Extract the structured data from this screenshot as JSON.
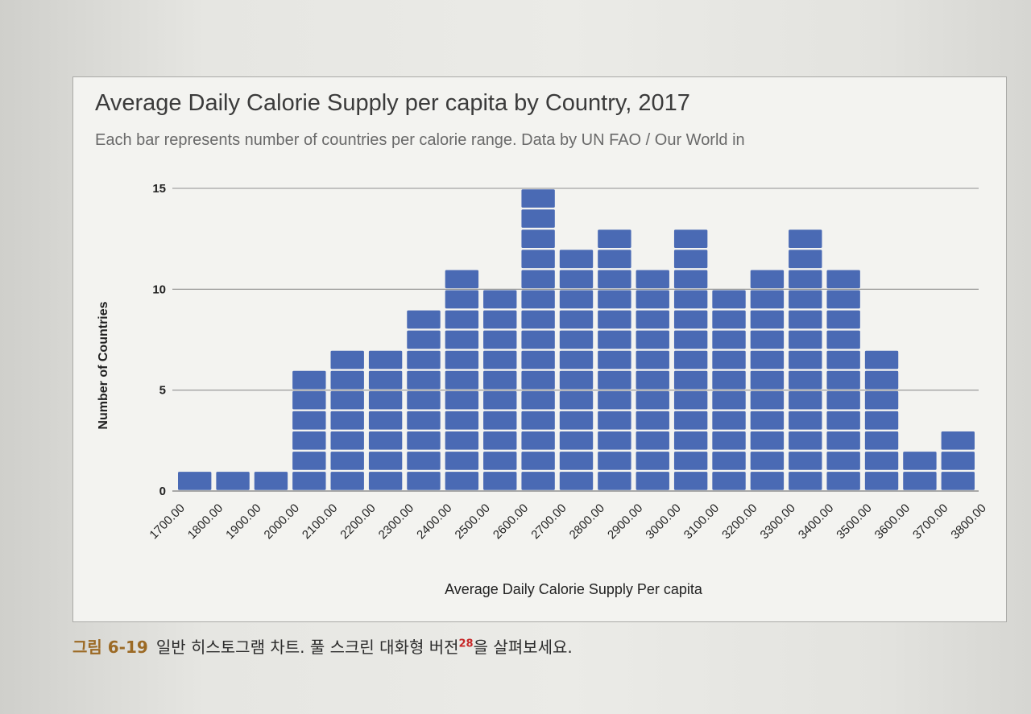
{
  "colors": {
    "bar": "#4a6ab4",
    "bar_divider": "#ffffff",
    "gridline": "#8f8f8f",
    "axis_text": "#222222",
    "caption_label": "#9c6a25",
    "footnote": "#c62828"
  },
  "chart_data": {
    "type": "bar",
    "title": "Average Daily Calorie Supply per capita by Country, 2017",
    "subtitle": "Each bar represents number of countries per calorie range. Data by UN FAO / Our World in",
    "xlabel": "Average Daily Calorie Supply Per capita",
    "ylabel": "Number of Countries",
    "ylim": [
      0,
      15
    ],
    "yticks": [
      "0",
      "5",
      "10",
      "15"
    ],
    "grid": true,
    "legend": "none",
    "x_tick_labels": [
      "1700.00",
      "1800.00",
      "1900.00",
      "2000.00",
      "2100.00",
      "2200.00",
      "2300.00",
      "2400.00",
      "2500.00",
      "2600.00",
      "2700.00",
      "2800.00",
      "2900.00",
      "3000.00",
      "3100.00",
      "3200.00",
      "3300.00",
      "3400.00",
      "3500.00",
      "3600.00",
      "3700.00",
      "3800.00"
    ],
    "values": [
      1,
      1,
      1,
      6,
      7,
      7,
      9,
      11,
      10,
      15,
      12,
      13,
      11,
      13,
      10,
      11,
      13,
      11,
      7,
      2,
      3
    ]
  },
  "caption": {
    "figure_label": "그림 6-19",
    "text": "일반 히스토그램 차트. 풀 스크린 대화형 버전",
    "footnote_number": "28",
    "text_after": "을 살펴보세요."
  }
}
